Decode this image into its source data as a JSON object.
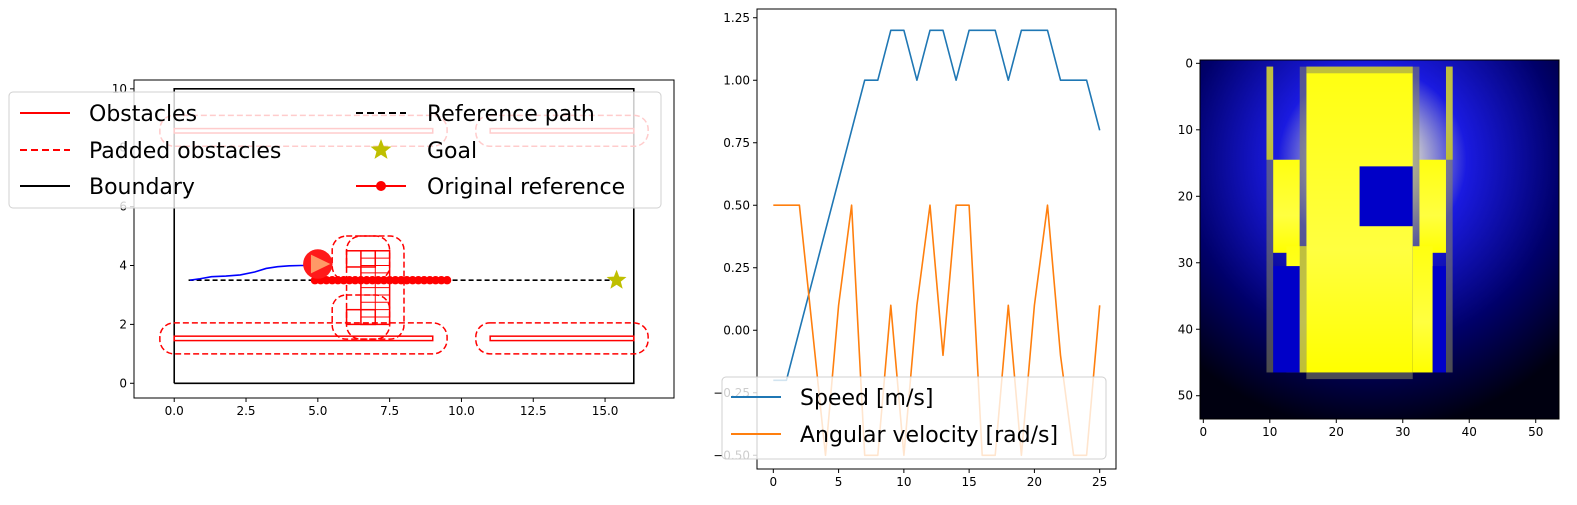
{
  "chart_data": [
    {
      "type": "line",
      "panel": "map",
      "xlim": [
        -1.4,
        17.4
      ],
      "ylim": [
        -0.5,
        10.3
      ],
      "xticks": [
        "0.0",
        "2.5",
        "5.0",
        "7.5",
        "10.0",
        "12.5",
        "15.0"
      ],
      "yticks": [
        "0",
        "2",
        "4",
        "6",
        "8",
        "10"
      ],
      "boundary": {
        "x": [
          0,
          16,
          16,
          0,
          0
        ],
        "y": [
          0,
          0,
          10,
          10,
          0
        ]
      },
      "obstacles": [
        {
          "x": [
            0,
            9
          ],
          "y": [
            8.5,
            8.65
          ]
        },
        {
          "x": [
            11,
            16
          ],
          "y": [
            8.5,
            8.65
          ]
        },
        {
          "x": [
            0,
            9
          ],
          "y": [
            1.45,
            1.6
          ]
        },
        {
          "x": [
            11,
            16
          ],
          "y": [
            1.45,
            1.6
          ]
        },
        {
          "x": [
            6,
            7
          ],
          "y": [
            3.95,
            4.5
          ]
        },
        {
          "x": [
            6,
            7
          ],
          "y": [
            2.0,
            2.5
          ]
        },
        {
          "x": [
            6.5,
            7.5
          ],
          "y": [
            2.0,
            4.5
          ]
        }
      ],
      "padded_obstacles": [
        {
          "x": [
            -0.5,
            9.5
          ],
          "y": [
            8.05,
            9.1
          ]
        },
        {
          "x": [
            10.5,
            16.5
          ],
          "y": [
            8.05,
            9.1
          ]
        },
        {
          "x": [
            -0.5,
            9.5
          ],
          "y": [
            1.0,
            2.05
          ]
        },
        {
          "x": [
            10.5,
            16.5
          ],
          "y": [
            1.0,
            2.05
          ]
        },
        {
          "x": [
            5.5,
            7.5
          ],
          "y": [
            3.5,
            5.0
          ]
        },
        {
          "x": [
            5.5,
            7.5
          ],
          "y": [
            1.5,
            3.0
          ]
        },
        {
          "x": [
            6.0,
            8.0
          ],
          "y": [
            1.5,
            5.0
          ]
        }
      ],
      "reference_path": {
        "x": [
          0.5,
          15.4
        ],
        "y": [
          3.5,
          3.5
        ]
      },
      "original_reference": {
        "x": [
          4.9,
          5.1,
          5.3,
          5.5,
          5.7,
          5.9,
          6.1,
          6.3,
          6.5,
          6.7,
          6.9,
          7.1,
          7.3,
          7.5,
          7.7,
          7.9,
          8.1,
          8.3,
          8.5,
          8.7,
          8.9,
          9.1,
          9.3,
          9.5
        ],
        "y": [
          3.5,
          3.5,
          3.5,
          3.5,
          3.5,
          3.5,
          3.5,
          3.5,
          3.5,
          3.5,
          3.5,
          3.5,
          3.5,
          3.5,
          3.5,
          3.5,
          3.5,
          3.5,
          3.5,
          3.5,
          3.5,
          3.5,
          3.5,
          3.5
        ]
      },
      "trajectory": {
        "x": [
          0.55,
          0.9,
          1.3,
          1.8,
          2.3,
          2.8,
          3.2,
          3.6,
          4.0,
          4.4,
          4.8,
          5.0
        ],
        "y": [
          3.5,
          3.55,
          3.62,
          3.64,
          3.68,
          3.78,
          3.9,
          3.96,
          3.99,
          4.0,
          4.0,
          4.0
        ]
      },
      "robot": {
        "x": 5.0,
        "y": 4.05,
        "radius": 0.5,
        "heading_deg": 0
      },
      "goal": {
        "x": 15.4,
        "y": 3.5
      },
      "legend": {
        "entries": [
          {
            "label": "Obstacles",
            "color": "#ff0000",
            "style": "solid"
          },
          {
            "label": "Padded obstacles",
            "color": "#ff0000",
            "style": "dashed"
          },
          {
            "label": "Boundary",
            "color": "#000000",
            "style": "solid"
          },
          {
            "label": "Reference path",
            "color": "#000000",
            "style": "dashed"
          },
          {
            "label": "Goal",
            "color": "#bfbf00",
            "style": "star"
          },
          {
            "label": "Original reference",
            "color": "#ff0000",
            "style": "line-dot"
          }
        ],
        "placement": "upper-left, two columns, overlapping plot"
      }
    },
    {
      "type": "line",
      "panel": "speeds",
      "x": [
        0,
        1,
        2,
        3,
        4,
        5,
        6,
        7,
        8,
        9,
        10,
        11,
        12,
        13,
        14,
        15,
        16,
        17,
        18,
        19,
        20,
        21,
        22,
        23,
        24,
        25
      ],
      "xlim": [
        -1.25,
        26.25
      ],
      "ylim": [
        -0.555,
        1.285
      ],
      "xticks": [
        "0",
        "5",
        "10",
        "15",
        "20",
        "25"
      ],
      "yticks": [
        "−0.50",
        "−0.25",
        "0.00",
        "0.25",
        "0.50",
        "0.75",
        "1.00",
        "1.25"
      ],
      "series": [
        {
          "name": "Speed [m/s]",
          "color": "#1f77b4",
          "values": [
            -0.2,
            -0.2,
            0.0,
            0.2,
            0.4,
            0.6,
            0.8,
            1.0,
            1.0,
            1.2,
            1.2,
            1.0,
            1.2,
            1.2,
            1.0,
            1.2,
            1.2,
            1.2,
            1.0,
            1.2,
            1.2,
            1.2,
            1.0,
            1.0,
            1.0,
            0.8
          ]
        },
        {
          "name": "Angular velocity [rad/s]",
          "color": "#ff7f0e",
          "values": [
            0.5,
            0.5,
            0.5,
            0.0,
            -0.5,
            0.1,
            0.5,
            -0.5,
            -0.5,
            0.1,
            -0.5,
            0.1,
            0.5,
            -0.1,
            0.5,
            0.5,
            -0.5,
            -0.5,
            0.1,
            -0.5,
            0.1,
            0.5,
            -0.1,
            -0.5,
            -0.5,
            0.1
          ]
        }
      ],
      "legend": {
        "placement": "lower-left"
      }
    },
    {
      "type": "heatmap",
      "panel": "cost-map",
      "xticks": [
        "0",
        "10",
        "20",
        "30",
        "40",
        "50"
      ],
      "yticks": [
        "0",
        "10",
        "20",
        "30",
        "40",
        "50"
      ],
      "grid_size": [
        54,
        54
      ],
      "colormap": "black-blue-white-yellow",
      "yellow_regions": [
        {
          "c0": 16,
          "c1": 32,
          "r0": 1,
          "r1": 47
        },
        {
          "c0": 11,
          "c1": 15,
          "r0": 15,
          "r1": 29
        },
        {
          "c0": 33,
          "c1": 37,
          "r0": 15,
          "r1": 29
        },
        {
          "c0": 32,
          "c1": 35,
          "r0": 28,
          "r1": 47
        },
        {
          "c0": 13,
          "c1": 16,
          "r0": 28,
          "r1": 47
        },
        {
          "c0": 10,
          "c1": 11,
          "r0": 1,
          "r1": 15
        },
        {
          "c0": 37,
          "c1": 38,
          "r0": 1,
          "r1": 15
        }
      ],
      "blue_regions": [
        {
          "c0": 24,
          "c1": 32,
          "r0": 16,
          "r1": 25
        },
        {
          "c0": 11,
          "c1": 15,
          "r0": 31,
          "r1": 47
        },
        {
          "c0": 35,
          "c1": 37,
          "r0": 31,
          "r1": 47
        }
      ]
    }
  ]
}
